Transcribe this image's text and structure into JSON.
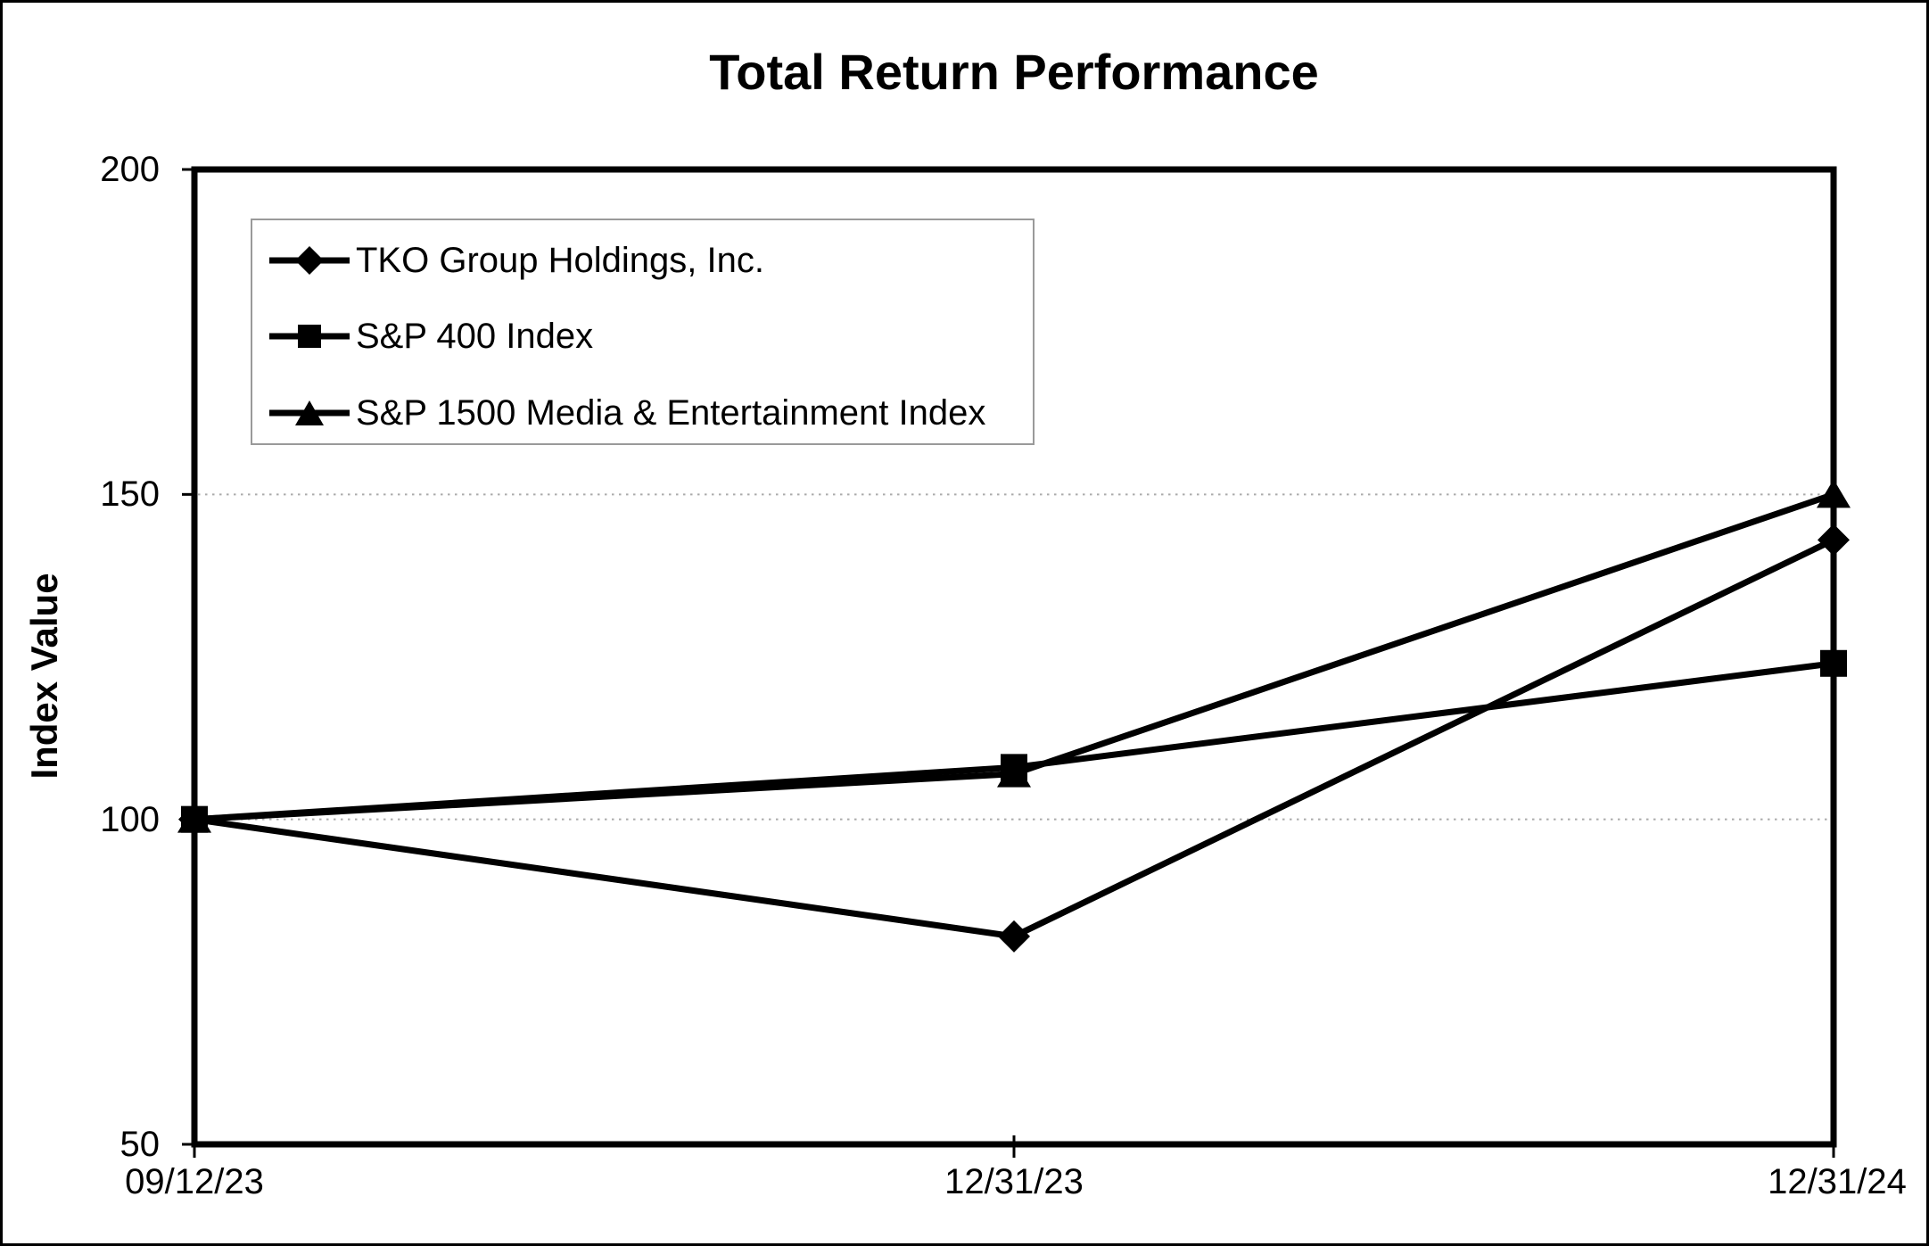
{
  "page": {
    "background_color": "#ffffff",
    "border_color": "#000000"
  },
  "chart_data": {
    "type": "line",
    "title": "Total Return Performance",
    "xlabel": "",
    "ylabel": "Index Value",
    "ylim": [
      50,
      200
    ],
    "y_ticks": [
      200,
      150,
      100,
      50
    ],
    "y_tick_labels": [
      "200",
      "150",
      "100",
      "50"
    ],
    "gridlines_at": [
      150,
      100
    ],
    "grid_style": "dotted horizontal gridlines at 100 and 150 only",
    "categories": [
      "09/12/23",
      "12/31/23",
      "12/31/24"
    ],
    "x_tick_labels": [
      "09/12/23",
      "12/31/23",
      "12/31/24"
    ],
    "series": [
      {
        "name": "TKO Group Holdings, Inc.",
        "marker": "diamond",
        "values": [
          100,
          82,
          143
        ]
      },
      {
        "name": "S&P 400 Index",
        "marker": "square",
        "values": [
          100,
          108,
          124
        ]
      },
      {
        "name": "S&P 1500 Media & Entertainment Index",
        "marker": "triangle",
        "values": [
          100,
          107,
          150
        ]
      }
    ],
    "legend_position": "upper-left inside plot",
    "line_color": "#000000",
    "marker_color": "#000000",
    "gridline_color": "#aaaaaa",
    "legend_border_color": "#9a9a9a",
    "text_color": "#000000"
  }
}
